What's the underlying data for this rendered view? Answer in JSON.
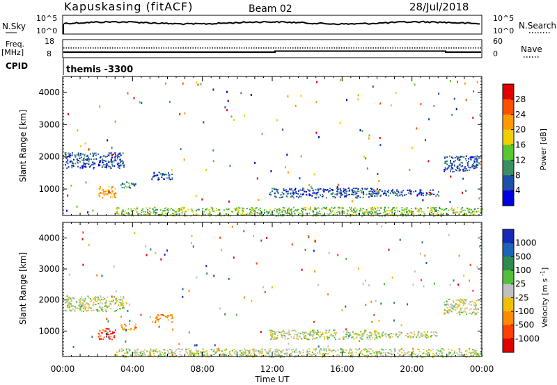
{
  "header": {
    "station": "Kapuskasing (fitACF)",
    "beam": "Beam 02",
    "date": "28/Jul/2018"
  },
  "nsky_panel": {
    "left_label": "N.Sky",
    "left_ticks": [
      "10^5",
      "10^0"
    ],
    "right_ticks": [
      "10^5",
      "10^0"
    ],
    "right_label": "N.Search"
  },
  "freq_panel": {
    "left_label_1": "Freq.",
    "left_label_2": "[MHz]",
    "left_ticks": [
      "18",
      "8"
    ],
    "right_ticks": [
      "60",
      "0"
    ],
    "right_label": "Nave"
  },
  "cpid": {
    "label": "CPID",
    "value": "themis -3300"
  },
  "chart_data": [
    {
      "type": "heatmap",
      "name": "power",
      "ylabel": "Slant Range [km]",
      "yticks": [
        1000,
        2000,
        3000,
        4000
      ],
      "ylim": [
        180,
        4500
      ],
      "xlim": [
        0,
        24
      ],
      "colorbar_label": "Power [dB]",
      "colorbar_ticks": [
        "28",
        "24",
        "20",
        "16",
        "12",
        "8",
        "4"
      ],
      "colorbar_colors": [
        "#e00000",
        "#ff5000",
        "#ff9a00",
        "#f0d000",
        "#58c830",
        "#3a8f60",
        "#1e4fa8",
        "#0000e0"
      ],
      "features": [
        {
          "t0": 0.1,
          "t1": 3.5,
          "r0": 1650,
          "r1": 2150,
          "level": 1
        },
        {
          "t0": 2.0,
          "t1": 3.0,
          "r0": 750,
          "r1": 1100,
          "level": 5
        },
        {
          "t0": 3.3,
          "t1": 4.2,
          "r0": 1050,
          "r1": 1250,
          "level": 2
        },
        {
          "t0": 5.1,
          "t1": 6.3,
          "r0": 1300,
          "r1": 1550,
          "level": 1
        },
        {
          "t0": 3.0,
          "t1": 24.0,
          "r0": 180,
          "r1": 450,
          "level": 3
        },
        {
          "t0": 11.8,
          "t1": 18.0,
          "r0": 750,
          "r1": 1050,
          "level": 1
        },
        {
          "t0": 18.0,
          "t1": 21.5,
          "r0": 800,
          "r1": 1000,
          "level": 1
        },
        {
          "t0": 21.8,
          "t1": 23.8,
          "r0": 1550,
          "r1": 2050,
          "level": 1
        }
      ]
    },
    {
      "type": "heatmap",
      "name": "velocity",
      "ylabel": "Slant Range [km]",
      "yticks": [
        1000,
        2000,
        3000,
        4000
      ],
      "ylim": [
        180,
        4500
      ],
      "xlim": [
        0,
        24
      ],
      "xlabel": "Time UT",
      "xticks": [
        "00:00",
        "04:00",
        "08:00",
        "12:00",
        "16:00",
        "20:00",
        "00:00"
      ],
      "colorbar_label": "Velocity [m s^-1]",
      "colorbar_ticks": [
        "1000",
        "500",
        "100",
        "25",
        "-25",
        "-100",
        "-500",
        "-1000"
      ],
      "colorbar_colors": [
        "#1828b8",
        "#1e64b4",
        "#2e8a4e",
        "#50c038",
        "#c0c0c0",
        "#f0c000",
        "#ff8a00",
        "#ff4000",
        "#e00000"
      ],
      "features": [
        {
          "t0": 0.1,
          "t1": 3.5,
          "r0": 1650,
          "r1": 2150,
          "level": 4
        },
        {
          "t0": 2.0,
          "t1": 3.0,
          "r0": 750,
          "r1": 1100,
          "level": 7
        },
        {
          "t0": 3.3,
          "t1": 4.2,
          "r0": 1050,
          "r1": 1250,
          "level": 6
        },
        {
          "t0": 5.1,
          "t1": 6.3,
          "r0": 1300,
          "r1": 1550,
          "level": 6
        },
        {
          "t0": 3.0,
          "t1": 24.0,
          "r0": 180,
          "r1": 450,
          "level": 4
        },
        {
          "t0": 11.8,
          "t1": 18.0,
          "r0": 750,
          "r1": 1050,
          "level": 4
        },
        {
          "t0": 18.0,
          "t1": 21.5,
          "r0": 800,
          "r1": 1000,
          "level": 4
        },
        {
          "t0": 21.8,
          "t1": 23.8,
          "r0": 1550,
          "r1": 2050,
          "level": 4
        }
      ]
    }
  ]
}
